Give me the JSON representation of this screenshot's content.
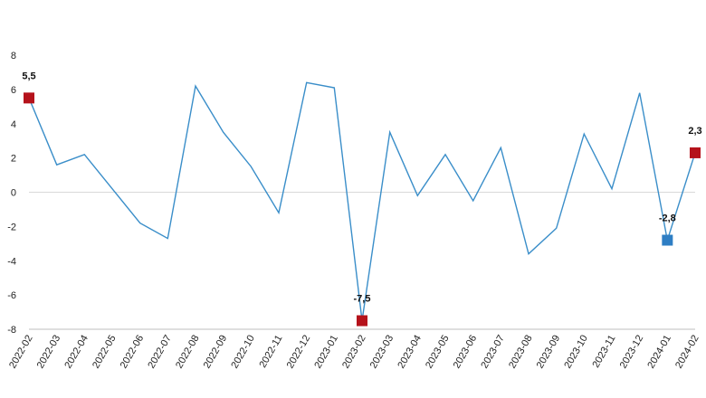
{
  "chart_data": {
    "type": "line",
    "title": "",
    "xlabel": "",
    "ylabel": "",
    "ylim": [
      -8,
      8
    ],
    "y_ticks": [
      "8",
      "6",
      "4",
      "2",
      "0",
      "-2",
      "-4",
      "-6",
      "-8"
    ],
    "categories": [
      "2022-02",
      "2022-03",
      "2022-04",
      "2022-05",
      "2022-06",
      "2022-07",
      "2022-08",
      "2022-09",
      "2022-10",
      "2022-11",
      "2022-12",
      "2023-01",
      "2023-02",
      "2023-03",
      "2023-04",
      "2023-05",
      "2023-06",
      "2023-07",
      "2023-08",
      "2023-09",
      "2023-10",
      "2023-11",
      "2023-12",
      "2024-01",
      "2024-02"
    ],
    "series": [
      {
        "values": [
          5.5,
          1.6,
          2.2,
          0.2,
          -1.8,
          -2.7,
          6.2,
          3.5,
          1.5,
          -1.2,
          6.4,
          6.1,
          -7.5,
          3.5,
          -0.2,
          2.2,
          -0.5,
          2.6,
          -3.6,
          -2.1,
          3.4,
          0.2,
          5.8,
          -2.8,
          2.3
        ],
        "color": "#3a8ec9"
      }
    ],
    "markers": [
      {
        "index": 0,
        "label": "5,5",
        "color": "#b5121b"
      },
      {
        "index": 12,
        "label": "-7,5",
        "color": "#b5121b"
      },
      {
        "index": 23,
        "label": "-2,8",
        "color": "#2e7ec4"
      },
      {
        "index": 24,
        "label": "2,3",
        "color": "#b5121b"
      }
    ],
    "grid": false,
    "zero_line": true
  }
}
